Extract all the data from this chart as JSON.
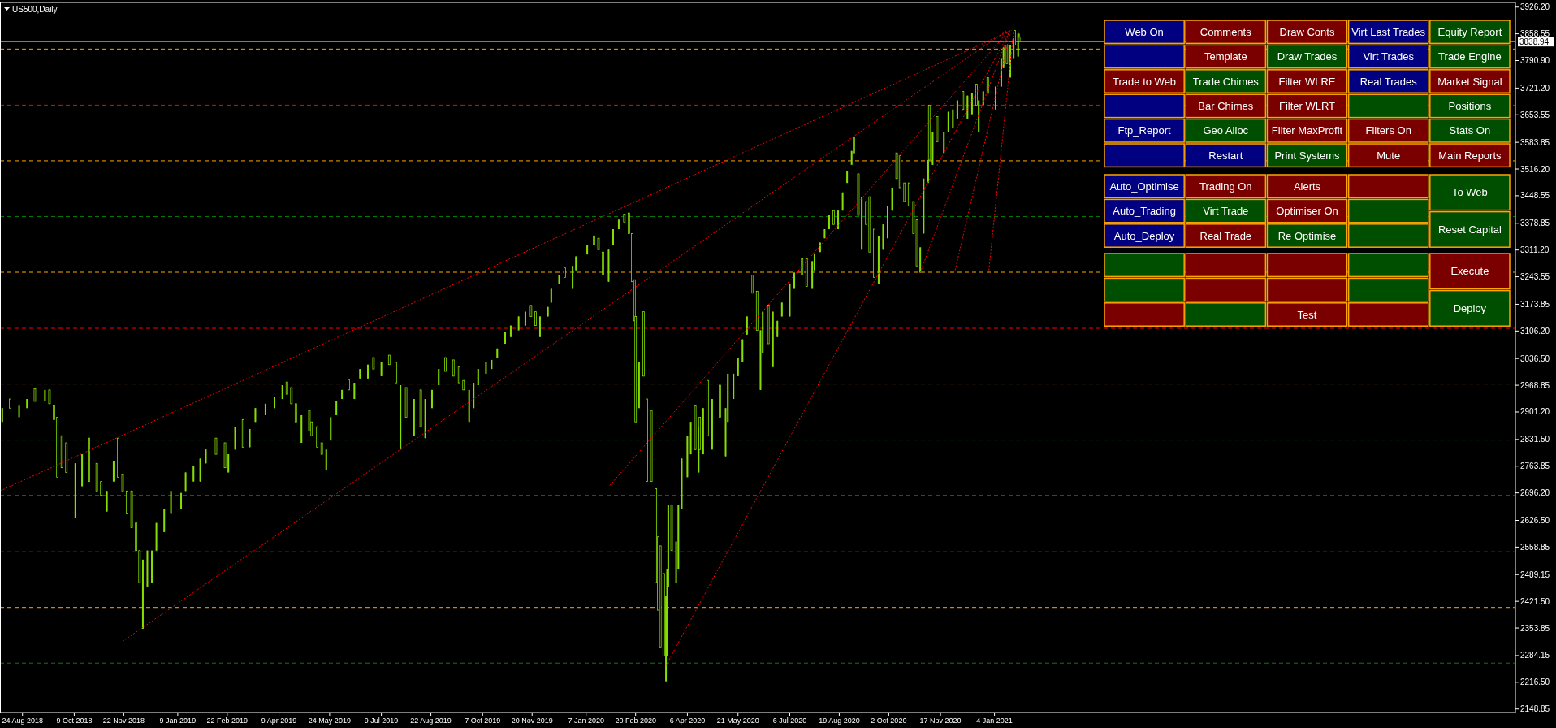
{
  "chart_data": [
    {
      "type": "candlestick",
      "title": "US500,Daily",
      "color": "#88dd00",
      "xlim": [
        "2018-08-04",
        "2022-04-12"
      ],
      "ylim": [
        2140,
        3938
      ],
      "xticks": [
        {
          "value": "2018-08-24",
          "label": "24 Aug 2018"
        },
        {
          "value": "2018-10-09",
          "label": "9 Oct 2018"
        },
        {
          "value": "2018-11-22",
          "label": "22 Nov 2018"
        },
        {
          "value": "2019-01-09",
          "label": "9 Jan 2019"
        },
        {
          "value": "2019-02-22",
          "label": "22 Feb 2019"
        },
        {
          "value": "2019-04-09",
          "label": "9 Apr 2019"
        },
        {
          "value": "2019-05-24",
          "label": "24 May 2019"
        },
        {
          "value": "2019-07-09",
          "label": "9 Jul 2019"
        },
        {
          "value": "2019-08-22",
          "label": "22 Aug 2019"
        },
        {
          "value": "2019-10-07",
          "label": "7 Oct 2019"
        },
        {
          "value": "2019-11-20",
          "label": "20 Nov 2019"
        },
        {
          "value": "2020-01-07",
          "label": "7 Jan 2020"
        },
        {
          "value": "2020-02-20",
          "label": "20 Feb 2020"
        },
        {
          "value": "2020-04-06",
          "label": "6 Apr 2020"
        },
        {
          "value": "2020-05-21",
          "label": "21 May 2020"
        },
        {
          "value": "2020-07-06",
          "label": "6 Jul 2020"
        },
        {
          "value": "2020-08-19",
          "label": "19 Aug 2020"
        },
        {
          "value": "2020-10-02",
          "label": "2 Oct 2020"
        },
        {
          "value": "2020-11-17",
          "label": "17 Nov 2020"
        },
        {
          "value": "2021-01-04",
          "label": "4 Jan 2021"
        }
      ],
      "yticks": [
        {
          "value": 3926.2,
          "label": "3926.20"
        },
        {
          "value": 3858.55,
          "label": "3858.55"
        },
        {
          "value": 3790.9,
          "label": "3790.90"
        },
        {
          "value": 3721.2,
          "label": "3721.20"
        },
        {
          "value": 3653.55,
          "label": "3653.55"
        },
        {
          "value": 3583.85,
          "label": "3583.85"
        },
        {
          "value": 3516.2,
          "label": "3516.20"
        },
        {
          "value": 3448.55,
          "label": "3448.55"
        },
        {
          "value": 3378.85,
          "label": "3378.85"
        },
        {
          "value": 3311.2,
          "label": "3311.20"
        },
        {
          "value": 3243.55,
          "label": "3243.55"
        },
        {
          "value": 3173.85,
          "label": "3173.85"
        },
        {
          "value": 3106.2,
          "label": "3106.20"
        },
        {
          "value": 3036.5,
          "label": "3036.50"
        },
        {
          "value": 2968.85,
          "label": "2968.85"
        },
        {
          "value": 2901.2,
          "label": "2901.20"
        },
        {
          "value": 2831.5,
          "label": "2831.50"
        },
        {
          "value": 2763.85,
          "label": "2763.85"
        },
        {
          "value": 2696.2,
          "label": "2696.20"
        },
        {
          "value": 2626.5,
          "label": "2626.50"
        },
        {
          "value": 2558.85,
          "label": "2558.85"
        },
        {
          "value": 2489.15,
          "label": "2489.15"
        },
        {
          "value": 2421.5,
          "label": "2421.50"
        },
        {
          "value": 2353.85,
          "label": "2353.85"
        },
        {
          "value": 2284.15,
          "label": "2284.15"
        },
        {
          "value": 2216.5,
          "label": "2216.50"
        },
        {
          "value": 2148.85,
          "label": "2148.85"
        }
      ],
      "ref_lines": [
        {
          "axis": "y",
          "value": 3838.94,
          "label": "3838.94",
          "color": "#c0c0c0",
          "line_style": "solid"
        },
        {
          "axis": "y",
          "value": 3820,
          "color": "#ffa500",
          "line_style": "dashed"
        },
        {
          "axis": "y",
          "value": 3678,
          "color": "#ff0000",
          "line_style": "dashed"
        },
        {
          "axis": "y",
          "value": 3537,
          "color": "#ffa500",
          "line_style": "dashed"
        },
        {
          "axis": "y",
          "value": 3396,
          "color": "#008000",
          "line_style": "dashed"
        },
        {
          "axis": "y",
          "value": 3255,
          "color": "#ffa500",
          "line_style": "dashed"
        },
        {
          "axis": "y",
          "value": 3113,
          "color": "#ff0000",
          "line_style": "dashed"
        },
        {
          "axis": "y",
          "value": 2972,
          "color": "#ffa500",
          "line_style": "dashed"
        },
        {
          "axis": "y",
          "value": 2830,
          "color": "#008000",
          "line_style": "dashed"
        },
        {
          "axis": "y",
          "value": 2689,
          "color": "#ffa500",
          "line_style": "dashed"
        },
        {
          "axis": "y",
          "value": 2547,
          "color": "#ff0000",
          "line_style": "dashed"
        },
        {
          "axis": "y",
          "value": 2406,
          "color": "#ffa500",
          "line_style": "dashed"
        },
        {
          "axis": "y",
          "value": 2265,
          "color": "#008000",
          "line_style": "dashed"
        }
      ],
      "x": [
        "2018-08-06",
        "2018-08-13",
        "2018-08-21",
        "2018-08-28",
        "2018-09-04",
        "2018-09-13",
        "2018-09-17",
        "2018-09-21",
        "2018-09-24",
        "2018-09-28",
        "2018-10-02",
        "2018-10-10",
        "2018-10-16",
        "2018-10-22",
        "2018-10-29",
        "2018-11-02",
        "2018-11-07",
        "2018-11-13",
        "2018-11-17",
        "2018-11-21",
        "2018-11-25",
        "2018-11-29",
        "2018-12-03",
        "2018-12-06",
        "2018-12-09",
        "2018-12-13",
        "2018-12-17",
        "2018-12-21",
        "2018-12-28",
        "2019-01-03",
        "2019-01-12",
        "2019-01-16",
        "2019-01-23",
        "2019-01-29",
        "2019-02-03",
        "2019-02-12",
        "2019-02-20",
        "2019-02-23",
        "2019-03-01",
        "2019-03-08",
        "2019-03-14",
        "2019-03-19",
        "2019-03-28",
        "2019-04-05",
        "2019-04-12",
        "2019-04-16",
        "2019-04-20",
        "2019-04-24",
        "2019-04-29",
        "2019-05-06",
        "2019-05-08",
        "2019-05-13",
        "2019-05-17",
        "2019-05-21",
        "2019-05-25",
        "2019-05-30",
        "2019-06-04",
        "2019-06-10",
        "2019-06-15",
        "2019-06-20",
        "2019-06-27",
        "2019-07-02",
        "2019-07-09",
        "2019-07-16",
        "2019-07-22",
        "2019-07-26",
        "2019-07-31",
        "2019-08-07",
        "2019-08-13",
        "2019-08-17",
        "2019-08-23",
        "2019-08-29",
        "2019-09-04",
        "2019-09-11",
        "2019-09-16",
        "2019-09-20",
        "2019-09-25",
        "2019-09-29",
        "2019-10-03",
        "2019-10-10",
        "2019-10-15",
        "2019-10-20",
        "2019-10-27",
        "2019-11-01",
        "2019-11-08",
        "2019-11-14",
        "2019-11-19",
        "2019-11-23",
        "2019-11-27",
        "2019-12-04",
        "2019-12-07",
        "2019-12-14",
        "2019-12-19",
        "2019-12-26",
        "2019-12-29",
        "2020-01-08",
        "2020-01-14",
        "2020-01-18",
        "2020-01-22",
        "2020-01-27",
        "2020-01-31",
        "2020-02-05",
        "2020-02-10",
        "2020-02-14",
        "2020-02-17",
        "2020-02-19",
        "2020-02-20",
        "2020-02-23",
        "2020-02-27",
        "2020-03-01",
        "2020-03-05",
        "2020-03-09",
        "2020-03-11",
        "2020-03-13",
        "2020-03-16",
        "2020-03-18",
        "2020-03-19",
        "2020-03-20",
        "2020-03-23",
        "2020-03-27",
        "2020-03-29",
        "2020-04-01",
        "2020-04-06",
        "2020-04-09",
        "2020-04-13",
        "2020-04-16",
        "2020-04-17",
        "2020-04-20",
        "2020-04-24",
        "2020-04-28",
        "2020-05-05",
        "2020-05-10",
        "2020-05-12",
        "2020-05-17",
        "2020-05-21",
        "2020-05-25",
        "2020-05-29",
        "2020-06-03",
        "2020-06-07",
        "2020-06-10",
        "2020-06-12",
        "2020-06-17",
        "2020-06-21",
        "2020-06-25",
        "2020-06-29",
        "2020-07-06",
        "2020-07-10",
        "2020-07-17",
        "2020-07-21",
        "2020-07-26",
        "2020-07-28",
        "2020-08-02",
        "2020-08-06",
        "2020-08-10",
        "2020-08-14",
        "2020-08-18",
        "2020-08-22",
        "2020-08-26",
        "2020-08-30",
        "2020-09-01",
        "2020-09-05",
        "2020-09-08",
        "2020-09-12",
        "2020-09-15",
        "2020-09-19",
        "2020-09-23",
        "2020-09-27",
        "2020-10-01",
        "2020-10-05",
        "2020-10-09",
        "2020-10-12",
        "2020-10-16",
        "2020-10-20",
        "2020-10-24",
        "2020-10-27",
        "2020-10-30",
        "2020-11-02",
        "2020-11-06",
        "2020-11-07",
        "2020-11-10",
        "2020-11-14",
        "2020-11-20",
        "2020-11-24",
        "2020-11-28",
        "2020-12-02",
        "2020-12-07",
        "2020-12-11",
        "2020-12-15",
        "2020-12-19",
        "2020-12-21",
        "2020-12-25",
        "2020-12-29",
        "2021-01-05",
        "2021-01-10",
        "2021-01-12",
        "2021-01-15",
        "2021-01-18",
        "2021-01-21",
        "2021-01-22",
        "2021-01-25",
        "2021-01-26"
      ],
      "ohlc": [
        [
          2876,
          2911,
          2876,
          2911
        ],
        [
          2934,
          2934,
          2911,
          2911
        ],
        [
          2888,
          2917,
          2888,
          2917
        ],
        [
          2911,
          2934,
          2911,
          2934
        ],
        [
          2960,
          2960,
          2928,
          2928
        ],
        [
          2928,
          2957,
          2928,
          2957
        ],
        [
          2957,
          2957,
          2922,
          2922
        ],
        [
          2917,
          2917,
          2882,
          2882
        ],
        [
          2888,
          2888,
          2736,
          2736
        ],
        [
          2841,
          2841,
          2760,
          2760
        ],
        [
          2823,
          2823,
          2748,
          2748
        ],
        [
          2632,
          2771,
          2632,
          2771
        ],
        [
          2713,
          2794,
          2713,
          2794
        ],
        [
          2835,
          2835,
          2725,
          2725
        ],
        [
          2771,
          2771,
          2701,
          2701
        ],
        [
          2725,
          2725,
          2690,
          2690
        ],
        [
          2649,
          2701,
          2649,
          2701
        ],
        [
          2725,
          2777,
          2725,
          2777
        ],
        [
          2835,
          2835,
          2736,
          2736
        ],
        [
          2742,
          2742,
          2701,
          2701
        ],
        [
          2701,
          2701,
          2643,
          2643
        ],
        [
          2701,
          2701,
          2608,
          2608
        ],
        [
          2620,
          2620,
          2550,
          2550
        ],
        [
          2550,
          2550,
          2469,
          2469
        ],
        [
          2352,
          2527,
          2352,
          2527
        ],
        [
          2457,
          2550,
          2457,
          2550
        ],
        [
          2469,
          2550,
          2469,
          2550
        ],
        [
          2550,
          2620,
          2550,
          2620
        ],
        [
          2597,
          2655,
          2597,
          2655
        ],
        [
          2643,
          2701,
          2643,
          2701
        ],
        [
          2655,
          2696,
          2655,
          2696
        ],
        [
          2701,
          2748,
          2701,
          2748
        ],
        [
          2725,
          2765,
          2725,
          2765
        ],
        [
          2725,
          2783,
          2725,
          2783
        ],
        [
          2771,
          2806,
          2771,
          2806
        ],
        [
          2835,
          2835,
          2794,
          2794
        ],
        [
          2823,
          2823,
          2760,
          2760
        ],
        [
          2748,
          2794,
          2748,
          2794
        ],
        [
          2806,
          2864,
          2806,
          2864
        ],
        [
          2882,
          2882,
          2812,
          2812
        ],
        [
          2812,
          2858,
          2812,
          2858
        ],
        [
          2876,
          2911,
          2876,
          2911
        ],
        [
          2893,
          2922,
          2893,
          2922
        ],
        [
          2911,
          2940,
          2911,
          2940
        ],
        [
          2934,
          2969,
          2934,
          2969
        ],
        [
          2977,
          2977,
          2946,
          2946
        ],
        [
          2963,
          2963,
          2922,
          2922
        ],
        [
          2922,
          2922,
          2876,
          2876
        ],
        [
          2823,
          2893,
          2823,
          2893
        ],
        [
          2905,
          2905,
          2853,
          2853
        ],
        [
          2876,
          2876,
          2841,
          2841
        ],
        [
          2864,
          2864,
          2812,
          2812
        ],
        [
          2823,
          2823,
          2794,
          2794
        ],
        [
          2754,
          2806,
          2754,
          2806
        ],
        [
          2829,
          2888,
          2829,
          2888
        ],
        [
          2893,
          2928,
          2893,
          2928
        ],
        [
          2934,
          2957,
          2934,
          2957
        ],
        [
          2983,
          2983,
          2957,
          2957
        ],
        [
          2934,
          2975,
          2934,
          2975
        ],
        [
          2986,
          3010,
          2986,
          3010
        ],
        [
          2986,
          3021,
          2986,
          3021
        ],
        [
          3039,
          3039,
          3010,
          3010
        ],
        [
          2992,
          3027,
          2992,
          3027
        ],
        [
          3045,
          3045,
          3021,
          3021
        ],
        [
          3027,
          3027,
          2975,
          2975
        ],
        [
          2806,
          2969,
          2806,
          2969
        ],
        [
          2963,
          2963,
          2888,
          2888
        ],
        [
          2841,
          2934,
          2841,
          2934
        ],
        [
          2957,
          2957,
          2864,
          2864
        ],
        [
          2835,
          2934,
          2835,
          2934
        ],
        [
          2911,
          2957,
          2911,
          2957
        ],
        [
          2969,
          3010,
          2969,
          3010
        ],
        [
          3039,
          3039,
          3004,
          3004
        ],
        [
          3033,
          3033,
          2992,
          2992
        ],
        [
          3015,
          3015,
          2975,
          2975
        ],
        [
          2981,
          2981,
          2957,
          2957
        ],
        [
          2876,
          2957,
          2876,
          2957
        ],
        [
          2911,
          2975,
          2911,
          2975
        ],
        [
          2969,
          3010,
          2969,
          3010
        ],
        [
          2998,
          3027,
          2998,
          3027
        ],
        [
          3010,
          3033,
          3010,
          3033
        ],
        [
          3039,
          3062,
          3039,
          3062
        ],
        [
          3074,
          3103,
          3074,
          3103
        ],
        [
          3091,
          3120,
          3091,
          3120
        ],
        [
          3108,
          3143,
          3108,
          3143
        ],
        [
          3120,
          3155,
          3120,
          3155
        ],
        [
          3171,
          3171,
          3143,
          3143
        ],
        [
          3155,
          3155,
          3120,
          3120
        ],
        [
          3091,
          3143,
          3091,
          3143
        ],
        [
          3143,
          3167,
          3143,
          3167
        ],
        [
          3178,
          3213,
          3178,
          3213
        ],
        [
          3225,
          3248,
          3225,
          3248
        ],
        [
          3266,
          3266,
          3242,
          3242
        ],
        [
          3213,
          3271,
          3213,
          3271
        ],
        [
          3260,
          3295,
          3260,
          3295
        ],
        [
          3300,
          3324,
          3300,
          3324
        ],
        [
          3347,
          3347,
          3324,
          3324
        ],
        [
          3341,
          3341,
          3312,
          3312
        ],
        [
          3306,
          3306,
          3248,
          3248
        ],
        [
          3231,
          3312,
          3231,
          3312
        ],
        [
          3324,
          3364,
          3324,
          3364
        ],
        [
          3364,
          3388,
          3364,
          3388
        ],
        [
          3402,
          3402,
          3382,
          3382
        ],
        [
          3405,
          3405,
          3353,
          3353
        ],
        [
          3353,
          3353,
          3231,
          3231
        ],
        [
          3236,
          3236,
          3132,
          3132
        ],
        [
          3143,
          3143,
          2876,
          2876
        ],
        [
          2911,
          3027,
          2911,
          3027
        ],
        [
          3155,
          3155,
          2992,
          2992
        ],
        [
          2934,
          2934,
          2725,
          2725
        ],
        [
          2905,
          2905,
          2725,
          2725
        ],
        [
          2707,
          2707,
          2469,
          2469
        ],
        [
          2585,
          2585,
          2399,
          2399
        ],
        [
          2562,
          2562,
          2306,
          2306
        ],
        [
          2492,
          2492,
          2283,
          2283
        ],
        [
          2219,
          2434,
          2219,
          2434
        ],
        [
          2283,
          2504,
          2283,
          2504
        ],
        [
          2457,
          2666,
          2457,
          2666
        ],
        [
          2666,
          2666,
          2550,
          2550
        ],
        [
          2469,
          2573,
          2469,
          2573
        ],
        [
          2504,
          2666,
          2504,
          2666
        ],
        [
          2655,
          2783,
          2655,
          2783
        ],
        [
          2736,
          2841,
          2736,
          2841
        ],
        [
          2794,
          2876,
          2794,
          2876
        ],
        [
          2917,
          2917,
          2806,
          2806
        ],
        [
          2748,
          2864,
          2748,
          2864
        ],
        [
          2888,
          2888,
          2806,
          2806
        ],
        [
          2794,
          2911,
          2794,
          2911
        ],
        [
          2981,
          2981,
          2841,
          2841
        ],
        [
          2806,
          2934,
          2806,
          2934
        ],
        [
          2969,
          2969,
          2888,
          2888
        ],
        [
          2789,
          2911,
          2789,
          2911
        ],
        [
          2876,
          2998,
          2876,
          2998
        ],
        [
          2934,
          2998,
          2934,
          2998
        ],
        [
          2992,
          3039,
          2992,
          3039
        ],
        [
          3027,
          3085,
          3027,
          3085
        ],
        [
          3097,
          3143,
          3097,
          3143
        ],
        [
          3248,
          3248,
          3202,
          3202
        ],
        [
          3207,
          3207,
          3108,
          3108
        ],
        [
          2957,
          3108,
          2957,
          3108
        ],
        [
          3050,
          3155,
          3050,
          3155
        ],
        [
          3172,
          3172,
          3074,
          3074
        ],
        [
          3015,
          3155,
          3015,
          3155
        ],
        [
          3091,
          3132,
          3091,
          3132
        ],
        [
          3143,
          3178,
          3143,
          3178
        ],
        [
          3143,
          3225,
          3143,
          3225
        ],
        [
          3213,
          3254,
          3213,
          3254
        ],
        [
          3289,
          3289,
          3248,
          3248
        ],
        [
          3289,
          3289,
          3219,
          3219
        ],
        [
          3213,
          3283,
          3213,
          3283
        ],
        [
          3260,
          3300,
          3260,
          3300
        ],
        [
          3306,
          3330,
          3306,
          3330
        ],
        [
          3341,
          3364,
          3341,
          3364
        ],
        [
          3364,
          3399,
          3364,
          3399
        ],
        [
          3411,
          3411,
          3376,
          3376
        ],
        [
          3364,
          3411,
          3364,
          3411
        ],
        [
          3411,
          3457,
          3411,
          3457
        ],
        [
          3481,
          3510,
          3481,
          3510
        ],
        [
          3527,
          3562,
          3527,
          3562
        ],
        [
          3597,
          3597,
          3557,
          3557
        ],
        [
          3504,
          3504,
          3399,
          3399
        ],
        [
          3312,
          3446,
          3312,
          3446
        ],
        [
          3434,
          3434,
          3376,
          3376
        ],
        [
          3446,
          3446,
          3306,
          3306
        ],
        [
          3364,
          3364,
          3242,
          3242
        ],
        [
          3225,
          3347,
          3225,
          3347
        ],
        [
          3312,
          3376,
          3312,
          3376
        ],
        [
          3341,
          3423,
          3341,
          3423
        ],
        [
          3411,
          3469,
          3411,
          3469
        ],
        [
          3557,
          3557,
          3492,
          3492
        ],
        [
          3550,
          3550,
          3469,
          3469
        ],
        [
          3481,
          3481,
          3434,
          3434
        ],
        [
          3481,
          3481,
          3423,
          3423
        ],
        [
          3434,
          3434,
          3353,
          3353
        ],
        [
          3388,
          3388,
          3271,
          3271
        ],
        [
          3254,
          3318,
          3254,
          3318
        ],
        [
          3353,
          3492,
          3353,
          3492
        ],
        [
          3481,
          3539,
          3481,
          3539
        ],
        [
          3678,
          3678,
          3539,
          3539
        ],
        [
          3527,
          3609,
          3527,
          3609
        ],
        [
          3649,
          3649,
          3585,
          3585
        ],
        [
          3557,
          3609,
          3557,
          3609
        ],
        [
          3609,
          3661,
          3609,
          3661
        ],
        [
          3620,
          3667,
          3620,
          3667
        ],
        [
          3644,
          3690,
          3644,
          3690
        ],
        [
          3713,
          3713,
          3667,
          3667
        ],
        [
          3644,
          3702,
          3644,
          3702
        ],
        [
          3655,
          3708,
          3655,
          3708
        ],
        [
          3731,
          3731,
          3678,
          3678
        ],
        [
          3609,
          3690,
          3609,
          3690
        ],
        [
          3678,
          3713,
          3678,
          3713
        ],
        [
          3748,
          3748,
          3708,
          3708
        ],
        [
          3667,
          3725,
          3667,
          3725
        ],
        [
          3725,
          3795,
          3725,
          3795
        ],
        [
          3772,
          3824,
          3772,
          3824
        ],
        [
          3830,
          3830,
          3783,
          3783
        ],
        [
          3748,
          3830,
          3748,
          3830
        ],
        [
          3795,
          3847,
          3795,
          3847
        ],
        [
          3867,
          3867,
          3830,
          3830
        ],
        [
          3801,
          3865,
          3801,
          3859
        ],
        [
          3850,
          3859,
          3838,
          3839
        ]
      ],
      "series": [
        {
          "type": "line",
          "color": "#ff0000",
          "line_style": "dotted",
          "x": [
            "2018-08-04",
            "2021-01-19"
          ],
          "values": [
            2701,
            3867
          ]
        },
        {
          "type": "line",
          "color": "#ff0000",
          "line_style": "dotted",
          "x": [
            "2018-11-21",
            "2021-01-15"
          ],
          "values": [
            2320,
            3867
          ]
        },
        {
          "type": "line",
          "color": "#ff0000",
          "line_style": "dotted",
          "x": [
            "2020-01-28",
            "2021-01-17"
          ],
          "values": [
            2715,
            3867
          ]
        },
        {
          "type": "line",
          "color": "#ff0000",
          "line_style": "dotted",
          "x": [
            "2020-03-18",
            "2021-01-18"
          ],
          "values": [
            2259,
            3867
          ]
        },
        {
          "type": "line",
          "color": "#ff0000",
          "line_style": "dotted",
          "x": [
            "2020-10-30",
            "2021-01-17"
          ],
          "values": [
            3254,
            3862
          ]
        },
        {
          "type": "line",
          "color": "#ff0000",
          "line_style": "dotted",
          "x": [
            "2020-11-30",
            "2021-01-18"
          ],
          "values": [
            3260,
            3862
          ]
        },
        {
          "type": "line",
          "color": "#ff0000",
          "line_style": "dotted",
          "x": [
            "2020-12-30",
            "2021-01-21"
          ],
          "values": [
            3260,
            3867
          ]
        }
      ]
    },
    {
      "type": "other",
      "categories": [
        "Web On",
        "Comments",
        "Draw Conts",
        "Virt Last Trades",
        null,
        "Template",
        "Draw Trades",
        "Virt Trades",
        "Trade to Web",
        "Trade Chimes",
        "Filter WLRE",
        "Real Trades",
        null,
        "Bar Chimes",
        "Filter WLRT",
        null,
        "Ftp_Report",
        "Geo Alloc",
        "Filter MaxProfit",
        "Filters On",
        null,
        "Restart",
        "Print Systems",
        "Mute",
        "Auto_Optimise",
        "Trading On",
        "Alerts",
        null,
        "Auto_Trading",
        "Virt Trade",
        "Optimiser On",
        null,
        "Auto_Deploy",
        "Real Trade",
        "Re Optimise",
        null,
        null,
        null,
        null,
        null,
        null,
        null,
        null,
        null,
        null,
        null,
        "Test",
        null,
        "Equity Report",
        "Trade Engine",
        "Market Signal",
        "Positions",
        "Stats On",
        "Main Reports",
        "To Web",
        "Reset Capital",
        "Execute",
        "Deploy"
      ],
      "colors": [
        "#000080",
        "#7a0000",
        "#7a0000",
        "#000080",
        "#000080",
        "#7a0000",
        "#004f00",
        "#000080",
        "#7a0000",
        "#004f00",
        "#7a0000",
        "#000080",
        "#000080",
        "#7a0000",
        "#7a0000",
        "#004f00",
        "#000080",
        "#004f00",
        "#7a0000",
        "#7a0000",
        "#000080",
        "#000080",
        "#004f00",
        "#7a0000",
        "#000080",
        "#7a0000",
        "#7a0000",
        "#7a0000",
        "#000080",
        "#004f00",
        "#7a0000",
        "#004f00",
        "#000080",
        "#7a0000",
        "#004f00",
        "#004f00",
        "#004f00",
        "#7a0000",
        "#7a0000",
        "#004f00",
        "#004f00",
        "#7a0000",
        "#7a0000",
        "#004f00",
        "#7a0000",
        "#004f00",
        "#7a0000",
        "#7a0000",
        "#004f00",
        "#004f00",
        "#7a0000",
        "#004f00",
        "#004f00",
        "#7a0000",
        "#004f00",
        "#004f00",
        "#7a0000",
        "#004f00"
      ]
    }
  ]
}
